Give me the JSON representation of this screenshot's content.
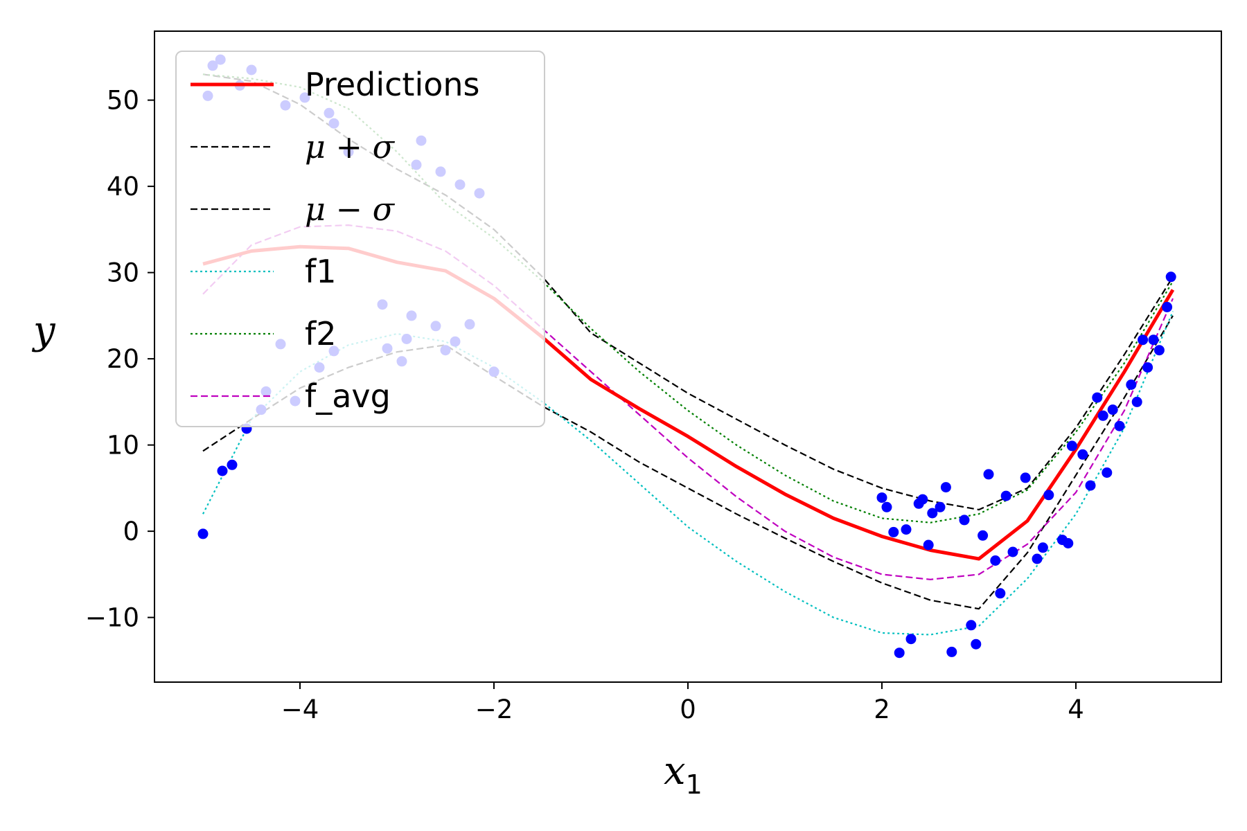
{
  "chart_data": {
    "type": "line",
    "xlabel": "x",
    "xlabel_sub": "1",
    "ylabel": "y",
    "xlim": [
      -5.5,
      5.5
    ],
    "ylim": [
      -17.5,
      58
    ],
    "xticks": [
      -4,
      -2,
      0,
      2,
      4
    ],
    "xtick_labels": [
      "−4",
      "−2",
      "0",
      "2",
      "4"
    ],
    "yticks": [
      -10,
      0,
      10,
      20,
      30,
      40,
      50
    ],
    "ytick_labels": [
      "−10",
      "0",
      "10",
      "20",
      "30",
      "40",
      "50"
    ],
    "grid": false,
    "legend_position": "top-left",
    "x": [
      -5,
      -4.5,
      -4,
      -3.5,
      -3,
      -2.5,
      -2,
      -1.5,
      -1,
      -0.5,
      0,
      0.5,
      1,
      1.5,
      2,
      2.5,
      3,
      3.5,
      4,
      4.5,
      5
    ],
    "series": [
      {
        "name": "Predictions",
        "color": "#ff0000",
        "style": "solid",
        "width": 5,
        "values": [
          31,
          32.5,
          33,
          32.8,
          31.2,
          30.2,
          27,
          22.5,
          17.6,
          14.2,
          11,
          7.5,
          4.3,
          1.5,
          -0.6,
          -2.2,
          -3.2,
          1.2,
          9.5,
          18.5,
          28
        ]
      },
      {
        "name": "μ + σ",
        "color": "#000000",
        "style": "dashed",
        "width": 2.2,
        "values": [
          53,
          52.2,
          49.5,
          45.5,
          42,
          39,
          35,
          29.5,
          23,
          19.5,
          16,
          13,
          10,
          7.2,
          5,
          3.5,
          2.5,
          5,
          12,
          20.5,
          29.5
        ]
      },
      {
        "name": "μ − σ",
        "color": "#000000",
        "style": "dashed",
        "width": 2.2,
        "values": [
          9.3,
          13,
          16.6,
          19,
          20.8,
          21.6,
          18,
          14.5,
          11.5,
          8,
          5,
          2,
          -0.8,
          -3.5,
          -6,
          -8,
          -9,
          -2.5,
          6.5,
          15.5,
          25
        ]
      },
      {
        "name": "f1",
        "color": "#00bfbf",
        "style": "dotted",
        "width": 2.2,
        "values": [
          2,
          13,
          18.5,
          21.6,
          22.9,
          22,
          19,
          15,
          10.5,
          5.5,
          0.5,
          -3.5,
          -7,
          -10,
          -11.8,
          -12,
          -11,
          -5.5,
          2,
          12,
          25.5
        ]
      },
      {
        "name": "f2",
        "color": "#007f00",
        "style": "dotted",
        "width": 2.2,
        "values": [
          53,
          52.5,
          51.5,
          49,
          44,
          38,
          34,
          29,
          23.5,
          18.5,
          14,
          10,
          6.5,
          3.5,
          1.5,
          1,
          2,
          4.8,
          11.5,
          19.5,
          29
        ]
      },
      {
        "name": "f_avg",
        "color": "#bf00bf",
        "style": "dashed",
        "width": 2.2,
        "values": [
          27.5,
          33.2,
          35.3,
          35.5,
          34.8,
          32.5,
          28.5,
          23.5,
          18.5,
          13.5,
          8.5,
          4,
          0,
          -3,
          -5,
          -5.6,
          -5,
          -1.5,
          4.5,
          14,
          27
        ]
      }
    ],
    "scatter_points": [
      [
        -5,
        -0.3
      ],
      [
        -4.8,
        7
      ],
      [
        -4.7,
        7.7
      ],
      [
        -4.55,
        11.9
      ],
      [
        -4.4,
        14.1
      ],
      [
        -4.35,
        16.2
      ],
      [
        -4.2,
        21.7
      ],
      [
        -4.05,
        15.1
      ],
      [
        -3.8,
        19
      ],
      [
        -3.65,
        20.9
      ],
      [
        -3.15,
        26.3
      ],
      [
        -3.1,
        21.2
      ],
      [
        -2.95,
        19.7
      ],
      [
        -2.9,
        22.3
      ],
      [
        -2.85,
        25
      ],
      [
        -2.6,
        23.8
      ],
      [
        -2.5,
        21
      ],
      [
        -2.4,
        22
      ],
      [
        -2.25,
        24
      ],
      [
        -2,
        18.5
      ],
      [
        -4.95,
        50.5
      ],
      [
        -4.9,
        54
      ],
      [
        -4.82,
        54.7
      ],
      [
        -4.62,
        51.7
      ],
      [
        -4.5,
        53.5
      ],
      [
        -4.15,
        49.4
      ],
      [
        -3.95,
        50.3
      ],
      [
        -3.7,
        48.5
      ],
      [
        -3.65,
        47.3
      ],
      [
        -3.5,
        44
      ],
      [
        -2.75,
        45.3
      ],
      [
        -2.8,
        42.5
      ],
      [
        -2.55,
        41.7
      ],
      [
        -2.35,
        40.2
      ],
      [
        -2.15,
        39.2
      ],
      [
        2,
        3.9
      ],
      [
        2.05,
        2.8
      ],
      [
        2.12,
        -0.1
      ],
      [
        2.18,
        -14.1
      ],
      [
        2.25,
        0.2
      ],
      [
        2.3,
        -12.5
      ],
      [
        2.38,
        3.2
      ],
      [
        2.42,
        3.7
      ],
      [
        2.48,
        -1.6
      ],
      [
        2.52,
        2.1
      ],
      [
        2.6,
        2.8
      ],
      [
        2.66,
        5.1
      ],
      [
        2.72,
        -14
      ],
      [
        2.85,
        1.3
      ],
      [
        2.92,
        -10.9
      ],
      [
        2.97,
        -13.1
      ],
      [
        3.04,
        -0.5
      ],
      [
        3.1,
        6.6
      ],
      [
        3.17,
        -3.4
      ],
      [
        3.22,
        -7.2
      ],
      [
        3.28,
        4.1
      ],
      [
        3.35,
        -2.4
      ],
      [
        3.48,
        6.2
      ],
      [
        3.6,
        -3.2
      ],
      [
        3.66,
        -1.9
      ],
      [
        3.72,
        4.2
      ],
      [
        3.86,
        -1
      ],
      [
        3.92,
        -1.4
      ],
      [
        3.96,
        9.9
      ],
      [
        4.07,
        8.9
      ],
      [
        4.15,
        5.3
      ],
      [
        4.22,
        15.5
      ],
      [
        4.28,
        13.4
      ],
      [
        4.32,
        6.8
      ],
      [
        4.38,
        14.1
      ],
      [
        4.45,
        12.2
      ],
      [
        4.57,
        17
      ],
      [
        4.63,
        15
      ],
      [
        4.69,
        22.2
      ],
      [
        4.74,
        19
      ],
      [
        4.8,
        22.2
      ],
      [
        4.86,
        21
      ],
      [
        4.94,
        26
      ],
      [
        4.98,
        29.5
      ]
    ]
  }
}
